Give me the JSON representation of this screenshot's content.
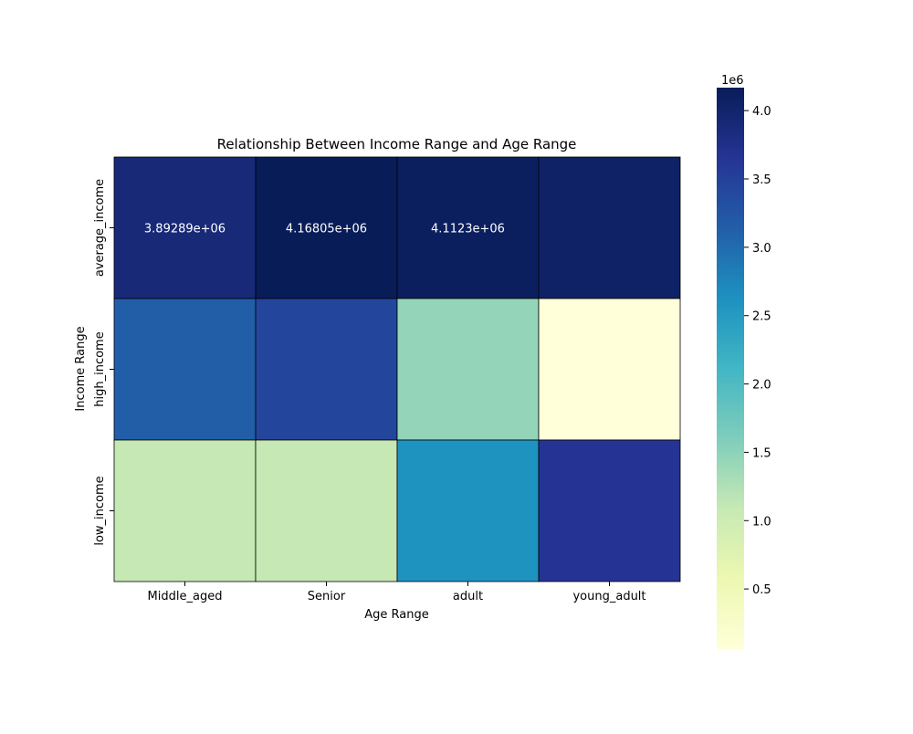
{
  "chart_data": {
    "type": "heatmap",
    "title": "Relationship Between Income Range and Age Range",
    "xlabel": "Age Range",
    "ylabel": "Income Range",
    "x_categories": [
      "Middle_aged",
      "Senior",
      "adult",
      "young_adult"
    ],
    "y_categories": [
      "average_income",
      "high_income",
      "low_income"
    ],
    "values": [
      [
        3892890,
        4168050,
        4112300,
        4050000
      ],
      [
        3150000,
        3450000,
        1450000,
        60000
      ],
      [
        1100000,
        1100000,
        2600000,
        3650000
      ]
    ],
    "annotations": [
      [
        "3.89289e+06",
        "4.16805e+06",
        "4.1123e+06",
        ""
      ],
      [
        "",
        "",
        "",
        ""
      ],
      [
        "",
        "",
        "",
        ""
      ]
    ],
    "annotation_color": "#ffffff",
    "cell_border_color": "#000000",
    "colormap": "YlGnBu",
    "colormap_stops": [
      "#ffffd9",
      "#edf8b1",
      "#c7e9b4",
      "#7fcdbb",
      "#41b6c4",
      "#1d91c0",
      "#225ea8",
      "#253494",
      "#081d58"
    ],
    "colorbar": {
      "vmin": 60000,
      "vmax": 4168050,
      "ticks": [
        500000,
        1000000,
        1500000,
        2000000,
        2500000,
        3000000,
        3500000,
        4000000
      ],
      "tick_labels": [
        "0.5",
        "1.0",
        "1.5",
        "2.0",
        "2.5",
        "3.0",
        "3.5",
        "4.0"
      ],
      "scale_label": "1e6"
    }
  }
}
